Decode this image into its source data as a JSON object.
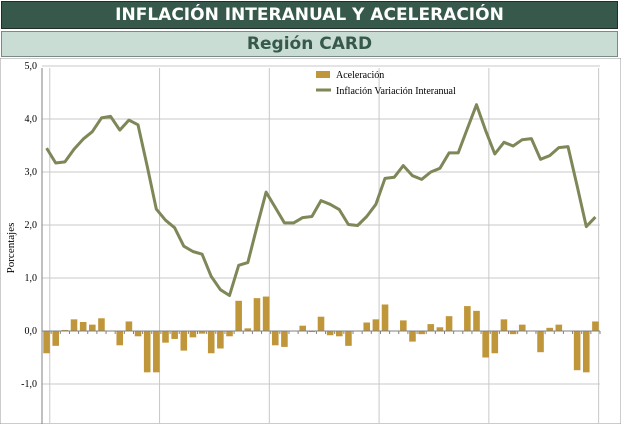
{
  "header": {
    "title": "INFLACIÓN INTERANUAL Y ACELERACIÓN",
    "subtitle": "Región CARD"
  },
  "colors": {
    "title_bg": "#36594c",
    "subtitle_bg": "#c9ddd4",
    "bar": "#c0963a",
    "line": "#7d8757",
    "grid": "#c8c8c8"
  },
  "chart_data": {
    "type": "bar+line",
    "ylabel": "Porcentajes",
    "ylim": [
      -1.8,
      5.0
    ],
    "yticks": [
      "5,0",
      "4,0",
      "3,0",
      "2,0",
      "1,0",
      "0,0",
      "-1,0"
    ],
    "ytick_values": [
      5,
      4,
      3,
      2,
      1,
      0,
      -1
    ],
    "grid": true,
    "legend_position": "top-center",
    "series": [
      {
        "name": "Aceleración",
        "type": "bar",
        "values": [
          -0.42,
          -0.28,
          0.02,
          0.22,
          0.17,
          0.12,
          0.24,
          0.0,
          -0.27,
          0.18,
          -0.1,
          -0.78,
          -0.78,
          -0.22,
          -0.15,
          -0.37,
          -0.12,
          -0.05,
          -0.42,
          -0.33,
          -0.1,
          0.57,
          0.05,
          0.62,
          0.65,
          -0.27,
          -0.3,
          0.0,
          0.1,
          -0.02,
          0.27,
          -0.08,
          -0.1,
          -0.28,
          0.0,
          0.16,
          0.22,
          0.5,
          0.0,
          0.2,
          -0.2,
          -0.06,
          0.13,
          0.07,
          0.28,
          0.0,
          0.47,
          0.38,
          -0.5,
          -0.42,
          0.22,
          -0.06,
          0.12,
          0.0,
          -0.4,
          0.06,
          0.12,
          0.0,
          -0.74,
          -0.78,
          0.18
        ]
      },
      {
        "name": "Inflación Variación Interanual",
        "type": "line",
        "values": [
          3.45,
          3.17,
          3.19,
          3.43,
          3.62,
          3.76,
          4.02,
          4.05,
          3.79,
          3.98,
          3.89,
          3.11,
          2.3,
          2.09,
          1.95,
          1.6,
          1.5,
          1.45,
          1.03,
          0.78,
          0.67,
          1.24,
          1.29,
          1.97,
          2.62,
          2.33,
          2.04,
          2.04,
          2.14,
          2.16,
          2.46,
          2.39,
          2.29,
          2.01,
          1.99,
          2.16,
          2.39,
          2.88,
          2.9,
          3.12,
          2.93,
          2.86,
          3.0,
          3.07,
          3.36,
          3.36,
          3.82,
          4.27,
          3.78,
          3.34,
          3.56,
          3.49,
          3.61,
          3.63,
          3.24,
          3.31,
          3.46,
          3.48,
          2.74,
          1.97,
          2.15
        ]
      }
    ]
  }
}
